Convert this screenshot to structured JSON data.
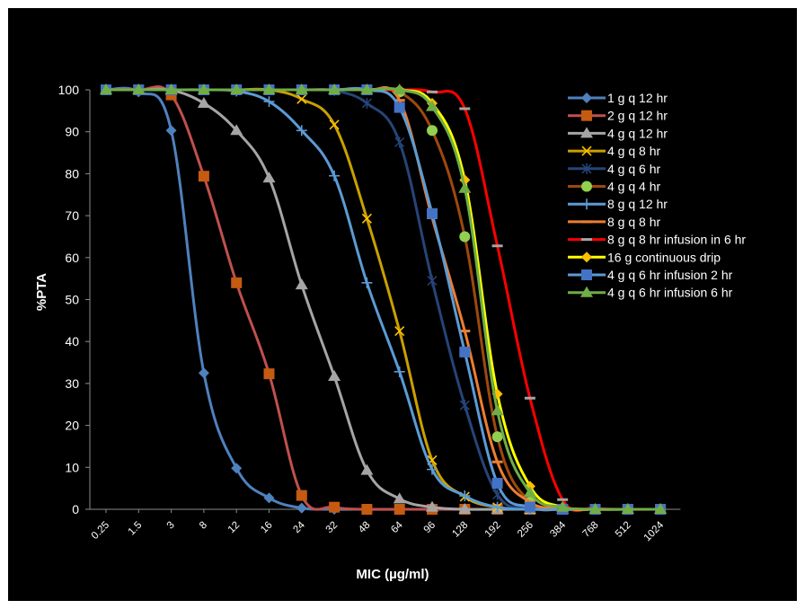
{
  "chart_data": {
    "type": "line",
    "title": "",
    "xlabel": "MIC (µg/ml)",
    "ylabel": "%PTA",
    "ylim": [
      0,
      100
    ],
    "yticks": [
      0,
      10,
      20,
      30,
      40,
      50,
      60,
      70,
      80,
      90,
      100
    ],
    "grid": false,
    "legend_position": "right",
    "categories": [
      "0.25",
      "1.5",
      "3",
      "8",
      "12",
      "16",
      "24",
      "32",
      "48",
      "64",
      "96",
      "128",
      "192",
      "256",
      "384",
      "768",
      "512",
      "1024"
    ],
    "series": [
      {
        "name": "1 g q 12 hr",
        "color": "#4F81BD",
        "marker": "diamond",
        "values": [
          100,
          99.5,
          90.3,
          32.5,
          9.8,
          2.7,
          0.3,
          0,
          0,
          0,
          0,
          0,
          0,
          0,
          0,
          0,
          0,
          0
        ]
      },
      {
        "name": "2 g q 12 hr",
        "color": "#C0504D",
        "marker": "square",
        "marker_color": "#C55A11",
        "values": [
          100,
          100,
          98.8,
          79.4,
          54,
          32.3,
          3.3,
          0.5,
          0,
          0,
          0,
          0,
          0,
          0,
          0,
          0,
          0,
          0
        ]
      },
      {
        "name": "4  g q 12 hr",
        "color": "#A5A5A5",
        "marker": "triangle",
        "values": [
          100,
          100,
          99.9,
          96.8,
          90.3,
          79,
          53.5,
          31.7,
          9.3,
          2.5,
          0.5,
          0,
          0,
          0,
          0,
          0,
          0,
          0
        ]
      },
      {
        "name": "4 g q 8 hr",
        "color": "#FFC000",
        "marker": "x",
        "line_color": "#C9A000",
        "values": [
          100,
          100,
          100,
          100,
          100,
          100,
          97.8,
          91.7,
          69.3,
          42.5,
          11.7,
          3,
          0.5,
          0,
          0,
          0,
          0,
          0
        ]
      },
      {
        "name": "4 g q 6 hr",
        "color": "#264478",
        "marker": "star",
        "values": [
          100,
          100,
          100,
          100,
          100,
          100,
          100,
          99.8,
          96.8,
          87.5,
          54.5,
          24.8,
          3.5,
          0.3,
          0,
          0,
          0,
          0
        ]
      },
      {
        "name": "4 g q 4 hr",
        "color": "#9E480E",
        "marker": "circle",
        "marker_color": "#92D050",
        "values": [
          100,
          100,
          100,
          100,
          100,
          100,
          100,
          100,
          100,
          99.5,
          90.3,
          65,
          17.3,
          1.7,
          0,
          0,
          0,
          0
        ]
      },
      {
        "name": "8 g q 12 hr",
        "color": "#5B9BD5",
        "marker": "plus",
        "values": [
          100,
          100,
          100,
          100,
          99.7,
          97.2,
          90.3,
          79.5,
          54,
          32.8,
          9.5,
          3.2,
          0.5,
          0,
          0,
          0,
          0,
          0
        ]
      },
      {
        "name": "8 g q 8 hr",
        "color": "#ED7D31",
        "marker": "dash",
        "values": [
          100,
          100,
          100,
          100,
          100,
          100,
          100,
          100,
          99.8,
          97.5,
          69.5,
          42.5,
          11.3,
          1.7,
          0.3,
          0,
          0,
          0
        ]
      },
      {
        "name": "8 g q 8 hr infusion in 6 hr",
        "color": "#FF0000",
        "marker": "dash",
        "marker_color": "#A5A5A5",
        "values": [
          100,
          100,
          100,
          100,
          100,
          100,
          100,
          100,
          100,
          100,
          99.5,
          95.5,
          62.8,
          26.5,
          2.3,
          0.3,
          0,
          0
        ]
      },
      {
        "name": "16 g continuous drip",
        "color": "#FFFF00",
        "marker": "diamond",
        "marker_color": "#FFC000",
        "values": [
          100,
          100,
          100,
          100,
          100,
          100,
          100,
          100,
          100,
          100,
          96.8,
          78.5,
          27.5,
          5.5,
          0.5,
          0,
          0,
          0
        ]
      },
      {
        "name": "4 g q 6 hr infusion 2 hr",
        "color": "#5B9BD5",
        "marker": "square",
        "marker_color": "#4472C4",
        "values": [
          100,
          100,
          100,
          100,
          100,
          100,
          100,
          100,
          100,
          95.8,
          70.5,
          37.5,
          6.2,
          0.5,
          0,
          0,
          0,
          0
        ]
      },
      {
        "name": "4 g q 6 hr infusion 6 hr",
        "color": "#70AD47",
        "marker": "triangle",
        "values": [
          100,
          100,
          100,
          100,
          100,
          100,
          100,
          100,
          100,
          100,
          96,
          76.5,
          23.5,
          4,
          0.5,
          0,
          0,
          0
        ]
      }
    ]
  }
}
